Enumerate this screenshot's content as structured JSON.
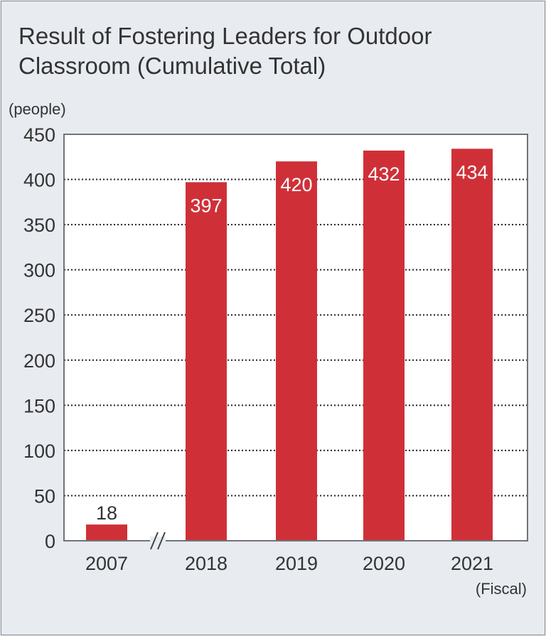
{
  "title_line1": "Result of Fostering Leaders for Outdoor",
  "title_line2": "Classroom (Cumulative Total)",
  "chart_data": {
    "type": "bar",
    "categories": [
      "2007",
      "2018",
      "2019",
      "2020",
      "2021"
    ],
    "values": [
      18,
      397,
      420,
      432,
      434
    ],
    "ylabel": "(people)",
    "xlabel": "(Fiscal)",
    "ylim": [
      0,
      450
    ],
    "yticks": [
      0,
      50,
      100,
      150,
      200,
      250,
      300,
      350,
      400,
      450
    ],
    "grid": "dotted horizontal",
    "axis_break": "between 2007 and 2018",
    "bar_color": "#cf3038",
    "plot_background": "#ffffff",
    "page_background": "#e8ebf0"
  }
}
